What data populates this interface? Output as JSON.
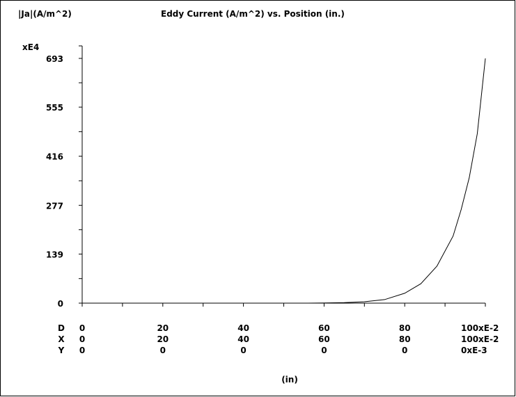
{
  "chart_data": {
    "type": "line",
    "title": "Eddy Current (A/m^2) vs. Position (in.)",
    "ylabel": "|Ja|(A/m^2)",
    "y_multiplier": "xE4",
    "xlabel": "(in)",
    "ylim": [
      0,
      693
    ],
    "xlim": [
      0,
      100
    ],
    "y_ticks": [
      "0",
      "139",
      "277",
      "416",
      "555",
      "693"
    ],
    "x_tick_rows": [
      {
        "name": "D",
        "labels": [
          "0",
          "20",
          "40",
          "60",
          "80",
          "100xE-2"
        ]
      },
      {
        "name": "X",
        "labels": [
          "0",
          "20",
          "40",
          "60",
          "80",
          "100xE-2"
        ]
      },
      {
        "name": "Y",
        "labels": [
          "0",
          "0",
          "0",
          "0",
          "0",
          "0xE-3"
        ]
      }
    ],
    "series": [
      {
        "x": [
          0,
          10,
          20,
          30,
          40,
          50,
          56,
          60,
          65,
          70,
          75,
          80,
          84,
          88,
          92,
          94,
          96,
          98,
          100
        ],
        "values": [
          0,
          0,
          0,
          0,
          0,
          0,
          0.1,
          0.5,
          1.5,
          4,
          10,
          28,
          55,
          105,
          190,
          265,
          355,
          480,
          693
        ]
      }
    ],
    "grid": false,
    "line_color": "#000000"
  }
}
